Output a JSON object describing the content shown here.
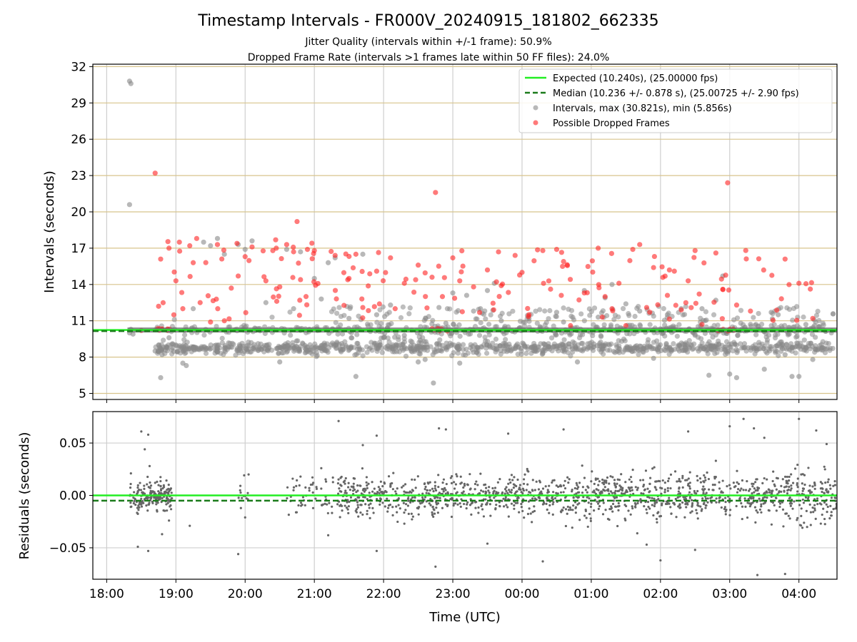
{
  "chart_data": [
    {
      "type": "scatter",
      "title": "Timestamp Intervals - FR000V_20240915_181802_662335",
      "subtitle_lines": [
        "Jitter Quality (intervals within +/-1 frame): 50.9%",
        "Dropped Frame Rate (intervals >1 frames late within 50 FF files): 24.0%"
      ],
      "xlabel": "",
      "ylabel": "Intervals (seconds)",
      "x_unit": "hours after 18:00 UTC",
      "xlim": [
        -0.2,
        10.55
      ],
      "ylim": [
        4.5,
        32.2
      ],
      "y_ticks": [
        5,
        8,
        11,
        14,
        17,
        20,
        23,
        26,
        29,
        32
      ],
      "x_ticks": [
        0,
        1,
        2,
        3,
        4,
        5,
        6,
        7,
        8,
        9,
        10
      ],
      "x_tick_labels": [
        "18:00",
        "19:00",
        "20:00",
        "21:00",
        "22:00",
        "23:00",
        "00:00",
        "01:00",
        "02:00",
        "03:00",
        "04:00"
      ],
      "grid": "horizontal tan lines at y ticks, vertical gray lines at x ticks",
      "reference_lines": [
        {
          "name": "Expected (10.240s), (25.00000 fps)",
          "value": 10.24,
          "color": "#22ee22",
          "style": "solid"
        },
        {
          "name": "Median (10.236 +/- 0.878 s), (25.00725 +/- 2.90 fps)",
          "value": 10.236,
          "color": "#1a7a1a",
          "style": "dashed"
        }
      ],
      "series": [
        {
          "name": "Intervals, max (30.821s), min (5.856s)",
          "color": "#888888",
          "points": [
            [
              0.33,
              30.8
            ],
            [
              0.35,
              30.6
            ],
            [
              0.33,
              20.6
            ],
            [
              0.33,
              10.0
            ],
            [
              0.35,
              10.3
            ],
            [
              0.38,
              9.9
            ],
            [
              0.7,
              8.5
            ],
            [
              0.75,
              9.0
            ],
            [
              0.78,
              6.3
            ],
            [
              0.8,
              8.2
            ],
            [
              0.9,
              9.6
            ],
            [
              1.0,
              9.0
            ],
            [
              1.1,
              7.5
            ],
            [
              1.15,
              7.3
            ],
            [
              1.25,
              12.0
            ],
            [
              1.4,
              17.5
            ],
            [
              1.5,
              17.2
            ],
            [
              1.6,
              17.8
            ],
            [
              1.7,
              16.5
            ],
            [
              1.9,
              17.3
            ],
            [
              2.0,
              16.9
            ],
            [
              2.1,
              17.6
            ],
            [
              2.3,
              12.5
            ],
            [
              2.5,
              7.6
            ],
            [
              2.6,
              16.9
            ],
            [
              2.7,
              12.0
            ],
            [
              2.8,
              16.7
            ],
            [
              3.0,
              14.5
            ],
            [
              3.1,
              12.8
            ],
            [
              3.2,
              15.8
            ],
            [
              3.3,
              16.2
            ],
            [
              3.5,
              11.2
            ],
            [
              3.6,
              6.4
            ],
            [
              3.7,
              16.5
            ],
            [
              3.9,
              11.5
            ],
            [
              4.1,
              12.3
            ],
            [
              4.3,
              9.8
            ],
            [
              4.4,
              8.5
            ],
            [
              4.5,
              7.6
            ],
            [
              4.6,
              7.8
            ],
            [
              4.72,
              5.86
            ],
            [
              4.8,
              12.1
            ],
            [
              4.9,
              10.8
            ],
            [
              5.0,
              13.3
            ],
            [
              5.1,
              7.5
            ],
            [
              5.2,
              13.1
            ],
            [
              5.3,
              11.8
            ],
            [
              5.4,
              12.0
            ],
            [
              5.5,
              13.5
            ],
            [
              5.6,
              14.1
            ],
            [
              5.7,
              11.0
            ],
            [
              5.8,
              10.5
            ],
            [
              5.9,
              8.7
            ],
            [
              6.1,
              11.2
            ],
            [
              6.3,
              8.3
            ],
            [
              6.5,
              11.7
            ],
            [
              6.6,
              10.9
            ],
            [
              6.8,
              7.6
            ],
            [
              6.9,
              13.5
            ],
            [
              7.1,
              11.3
            ],
            [
              7.2,
              12.9
            ],
            [
              7.3,
              14.0
            ],
            [
              7.5,
              12.4
            ],
            [
              7.7,
              11.8
            ],
            [
              7.9,
              7.9
            ],
            [
              8.1,
              11.5
            ],
            [
              8.3,
              12.0
            ],
            [
              8.5,
              9.8
            ],
            [
              8.6,
              12.0
            ],
            [
              8.7,
              6.5
            ],
            [
              8.8,
              12.7
            ],
            [
              8.9,
              14.7
            ],
            [
              9.0,
              6.6
            ],
            [
              9.1,
              6.3
            ],
            [
              9.2,
              8.8
            ],
            [
              9.3,
              10.7
            ],
            [
              9.5,
              7.0
            ],
            [
              9.6,
              11.7
            ],
            [
              9.7,
              11.5
            ],
            [
              9.8,
              8.2
            ],
            [
              9.9,
              6.4
            ],
            [
              10.0,
              6.4
            ],
            [
              10.1,
              10.7
            ],
            [
              10.2,
              7.8
            ],
            [
              10.3,
              10.5
            ]
          ]
        },
        {
          "name": "Possible Dropped Frames",
          "color": "#ff2222",
          "points": [
            [
              0.5,
              10.2
            ],
            [
              0.75,
              12.2
            ],
            [
              0.78,
              16.1
            ],
            [
              0.8,
              10.3
            ],
            [
              0.9,
              17.0
            ],
            [
              0.7,
              23.2
            ],
            [
              1.0,
              14.3
            ],
            [
              1.05,
              17.5
            ],
            [
              1.1,
              12.0
            ],
            [
              1.2,
              17.2
            ],
            [
              1.25,
              15.8
            ],
            [
              1.3,
              17.8
            ],
            [
              1.35,
              12.5
            ],
            [
              1.5,
              10.9
            ],
            [
              1.6,
              17.3
            ],
            [
              1.7,
              11.0
            ],
            [
              1.8,
              13.7
            ],
            [
              1.9,
              14.7
            ],
            [
              2.0,
              16.3
            ],
            [
              2.1,
              17.1
            ],
            [
              2.3,
              14.3
            ],
            [
              2.4,
              16.8
            ],
            [
              2.45,
              17.0
            ],
            [
              2.5,
              13.8
            ],
            [
              2.6,
              17.3
            ],
            [
              2.7,
              16.7
            ],
            [
              2.75,
              19.2
            ],
            [
              2.8,
              14.4
            ],
            [
              2.9,
              16.9
            ],
            [
              3.0,
              16.8
            ],
            [
              3.3,
              16.4
            ],
            [
              3.5,
              14.5
            ],
            [
              3.6,
              16.5
            ],
            [
              3.7,
              12.1
            ],
            [
              3.9,
              15.1
            ],
            [
              4.1,
              16.2
            ],
            [
              4.3,
              14.1
            ],
            [
              4.5,
              15.6
            ],
            [
              4.7,
              14.6
            ],
            [
              4.75,
              21.6
            ],
            [
              4.8,
              10.3
            ],
            [
              4.85,
              13.0
            ],
            [
              5.0,
              16.2
            ],
            [
              5.1,
              14.3
            ],
            [
              5.3,
              13.8
            ],
            [
              5.5,
              15.2
            ],
            [
              5.7,
              13.9
            ],
            [
              5.9,
              16.4
            ],
            [
              6.0,
              15.0
            ],
            [
              6.1,
              11.5
            ],
            [
              6.3,
              16.8
            ],
            [
              6.5,
              16.9
            ],
            [
              6.6,
              15.9
            ],
            [
              6.7,
              10.6
            ],
            [
              6.9,
              13.3
            ],
            [
              7.1,
              17.0
            ],
            [
              7.2,
              13.0
            ],
            [
              7.3,
              12.0
            ],
            [
              7.4,
              14.1
            ],
            [
              7.5,
              10.6
            ],
            [
              7.6,
              16.9
            ],
            [
              7.7,
              17.3
            ],
            [
              7.8,
              12.1
            ],
            [
              7.9,
              15.4
            ],
            [
              8.1,
              13.1
            ],
            [
              8.2,
              15.1
            ],
            [
              8.3,
              11.9
            ],
            [
              8.4,
              14.3
            ],
            [
              8.5,
              16.8
            ],
            [
              8.6,
              10.7
            ],
            [
              8.8,
              16.6
            ],
            [
              8.9,
              13.6
            ],
            [
              8.97,
              22.4
            ],
            [
              9.0,
              10.3
            ],
            [
              9.1,
              12.3
            ],
            [
              9.3,
              11.8
            ],
            [
              9.8,
              16.1
            ],
            [
              10.0,
              14.1
            ],
            [
              10.2,
              11.2
            ]
          ]
        }
      ],
      "legend_position": "top-right"
    },
    {
      "type": "scatter",
      "xlabel": "Time (UTC)",
      "ylabel": "Residuals (seconds)",
      "x_unit": "hours after 18:00 UTC",
      "xlim": [
        -0.2,
        10.55
      ],
      "ylim": [
        -0.08,
        0.08
      ],
      "y_ticks": [
        0.05,
        0.0,
        -0.05
      ],
      "y_tick_labels": [
        "0.05",
        "0.00",
        "−0.05"
      ],
      "x_ticks": [
        0,
        1,
        2,
        3,
        4,
        5,
        6,
        7,
        8,
        9,
        10
      ],
      "x_tick_labels": [
        "18:00",
        "19:00",
        "20:00",
        "21:00",
        "22:00",
        "23:00",
        "00:00",
        "01:00",
        "02:00",
        "03:00",
        "04:00"
      ],
      "grid": "gray lines at y ticks and x ticks",
      "reference_lines": [
        {
          "value": 0.0,
          "color": "#22ee22",
          "style": "solid"
        },
        {
          "value": -0.005,
          "color": "#1a7a1a",
          "style": "dashed"
        }
      ],
      "series": [
        {
          "color": "#666666",
          "points": [
            [
              0.35,
              0.021
            ],
            [
              0.5,
              0.061
            ],
            [
              0.55,
              0.044
            ],
            [
              0.6,
              0.058
            ],
            [
              0.62,
              0.028
            ],
            [
              0.7,
              0.012
            ],
            [
              0.45,
              -0.049
            ],
            [
              0.6,
              -0.053
            ],
            [
              0.8,
              -0.037
            ],
            [
              0.9,
              -0.024
            ],
            [
              1.2,
              -0.029
            ],
            [
              1.9,
              -0.056
            ],
            [
              2.05,
              0.02
            ],
            [
              2.0,
              -0.021
            ],
            [
              2.8,
              0.018
            ],
            [
              3.1,
              0.026
            ],
            [
              3.2,
              -0.038
            ],
            [
              3.35,
              0.071
            ],
            [
              3.7,
              0.048
            ],
            [
              3.9,
              0.057
            ],
            [
              3.9,
              -0.053
            ],
            [
              4.3,
              -0.027
            ],
            [
              4.45,
              0.015
            ],
            [
              4.75,
              -0.068
            ],
            [
              4.8,
              0.064
            ],
            [
              4.9,
              0.063
            ],
            [
              5.5,
              -0.046
            ],
            [
              5.8,
              0.059
            ],
            [
              6.3,
              -0.063
            ],
            [
              6.6,
              0.063
            ],
            [
              7.2,
              0.008
            ],
            [
              7.8,
              -0.047
            ],
            [
              8.0,
              -0.062
            ],
            [
              8.4,
              0.061
            ],
            [
              8.5,
              -0.052
            ],
            [
              8.8,
              0.033
            ],
            [
              9.0,
              0.066
            ],
            [
              9.2,
              0.073
            ],
            [
              9.35,
              0.064
            ],
            [
              9.4,
              -0.076
            ],
            [
              9.5,
              0.055
            ],
            [
              9.8,
              -0.075
            ],
            [
              10.0,
              0.073
            ],
            [
              10.25,
              0.062
            ],
            [
              10.4,
              0.049
            ]
          ]
        }
      ]
    }
  ]
}
